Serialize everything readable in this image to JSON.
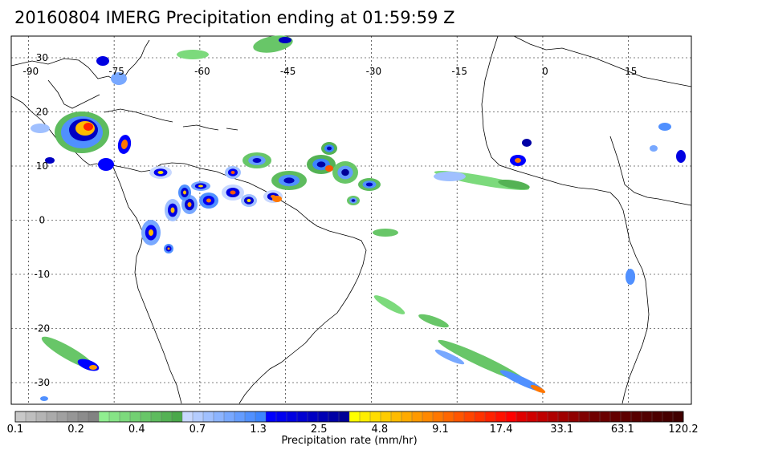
{
  "title": "20160804 IMERG Precipitation ending at 01:59:59 Z",
  "map": {
    "lon_labels": [
      "-90",
      "-75",
      "-60",
      "-45",
      "-30",
      "-15",
      "0",
      "15"
    ],
    "lat_labels": [
      "30",
      "20",
      "10",
      "0",
      "-10",
      "-20",
      "-30"
    ],
    "lon_values": [
      -90,
      -75,
      -60,
      -45,
      -30,
      -15,
      0,
      15
    ],
    "lat_values": [
      30,
      20,
      10,
      0,
      -10,
      -20,
      -30
    ],
    "extent": {
      "lon_min": -93,
      "lon_max": 26,
      "lat_min": -34,
      "lat_max": 34
    }
  },
  "colorbar": {
    "label": "Precipitation rate (mm/hr)",
    "tick_labels": [
      "0.1",
      "0.2",
      "0.4",
      "0.7",
      "1.3",
      "2.5",
      "4.8",
      "9.1",
      "17.4",
      "33.1",
      "63.1",
      "120.2"
    ],
    "colors": [
      "#c8c8c8",
      "#bebebe",
      "#b4b4b4",
      "#aaaaaa",
      "#a0a0a0",
      "#969696",
      "#8c8c8c",
      "#828282",
      "#90ee90",
      "#86e486",
      "#7cda7c",
      "#72d072",
      "#68c668",
      "#5ebc5e",
      "#54b254",
      "#4aa84a",
      "#c8d8ff",
      "#b4ccff",
      "#a0c0ff",
      "#8cb4ff",
      "#78a8ff",
      "#649cff",
      "#5090ff",
      "#3c84ff",
      "#0000ff",
      "#0000f0",
      "#0000e1",
      "#0000d2",
      "#0000c3",
      "#0000b4",
      "#0000a5",
      "#000096",
      "#ffff00",
      "#ffee00",
      "#ffdd00",
      "#ffcc00",
      "#ffbb00",
      "#ffaa00",
      "#ff9900",
      "#ff8800",
      "#ff7700",
      "#ff6600",
      "#ff5500",
      "#ff4400",
      "#ff3300",
      "#ff2200",
      "#ff1100",
      "#ff0000",
      "#e00000",
      "#d00000",
      "#c00000",
      "#b00000",
      "#a00000",
      "#900000",
      "#800000",
      "#700000",
      "#6a0000",
      "#640000",
      "#5e0000",
      "#580000",
      "#520000",
      "#4c0000",
      "#460000",
      "#400000"
    ]
  }
}
